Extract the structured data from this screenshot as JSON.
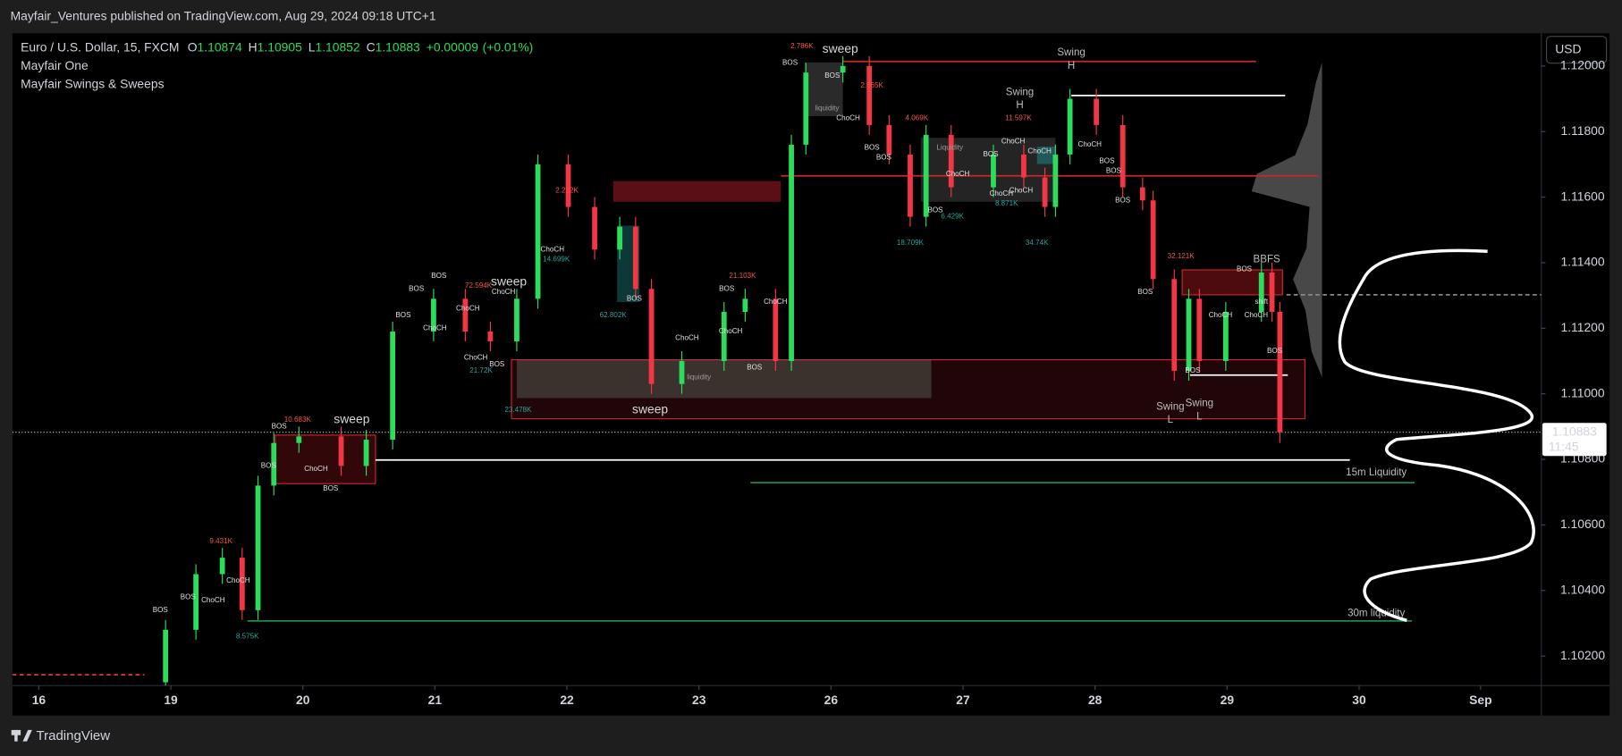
{
  "header": {
    "publisher": "Mayfair_Ventures published on TradingView.com, Aug 29, 2024 09:18 UTC+1",
    "brand": "TradingView"
  },
  "chart_data": {
    "type": "candlestick",
    "symbol": "Euro / U.S. Dollar, 15, FXCM",
    "ohlc_labels": [
      "O",
      "H",
      "L",
      "C"
    ],
    "ohlc_values": [
      1.10874,
      1.10905,
      1.10852,
      1.10883
    ],
    "change": {
      "value": 9e-05,
      "label": "+0.00009"
    },
    "change_percent": {
      "value": 0.01,
      "label": "(+0.01%)"
    },
    "indicators": [
      "Mayfair One",
      "Mayfair Swings & Sweeps"
    ],
    "currency": "USD",
    "last_price": 1.10883,
    "countdown": "11:45",
    "up_color": "#2ddc5a",
    "down_color": "#f23645",
    "x": [
      0.96,
      1.19,
      1.39,
      1.54,
      1.66,
      1.78,
      1.97,
      2.29,
      2.48,
      2.68,
      2.99,
      3.23,
      3.42,
      3.62,
      3.78,
      4.01,
      4.21,
      4.4,
      4.52,
      4.64,
      4.87,
      5.19,
      5.35,
      5.58,
      5.7,
      5.81,
      6.09,
      6.29,
      6.44,
      6.6,
      6.72,
      6.91,
      7.23,
      7.46,
      7.62,
      7.7,
      7.81,
      8.01,
      8.21,
      8.36,
      8.44,
      8.6,
      8.71,
      8.79,
      8.99,
      9.26,
      9.34,
      9.4
    ],
    "open": [
      1.1012,
      1.1028,
      1.1045,
      1.105,
      1.1034,
      1.1072,
      1.1085,
      1.1087,
      1.1078,
      1.1086,
      1.1119,
      1.1129,
      1.1119,
      1.1116,
      1.1129,
      1.117,
      1.1157,
      1.1144,
      1.1151,
      1.1132,
      1.1103,
      1.111,
      1.1125,
      1.1129,
      1.111,
      1.1176,
      1.1198,
      1.12,
      1.1182,
      1.1173,
      1.1154,
      1.1179,
      1.1163,
      1.1173,
      1.1166,
      1.1157,
      1.1173,
      1.119,
      1.1182,
      1.1163,
      1.1159,
      1.1135,
      1.1107,
      1.1129,
      1.111,
      1.1125,
      1.1137,
      1.1125
    ],
    "high": [
      1.1031,
      1.1048,
      1.1053,
      1.1053,
      1.1075,
      1.1088,
      1.109,
      1.109,
      1.1089,
      1.1122,
      1.1132,
      1.1132,
      1.1122,
      1.1132,
      1.1173,
      1.1173,
      1.116,
      1.1154,
      1.1154,
      1.1135,
      1.1113,
      1.1128,
      1.1132,
      1.1132,
      1.1179,
      1.1201,
      1.1203,
      1.1203,
      1.1185,
      1.1176,
      1.1182,
      1.1182,
      1.1176,
      1.1176,
      1.1169,
      1.1176,
      1.1193,
      1.1193,
      1.1185,
      1.1166,
      1.1162,
      1.1138,
      1.1132,
      1.1132,
      1.1128,
      1.114,
      1.114,
      1.1128
    ],
    "low": [
      1.1009,
      1.1025,
      1.1042,
      1.1031,
      1.1031,
      1.1069,
      1.1082,
      1.1075,
      1.1075,
      1.1083,
      1.1116,
      1.1116,
      1.1113,
      1.1113,
      1.1126,
      1.1154,
      1.1141,
      1.1141,
      1.1129,
      1.11,
      1.11,
      1.1107,
      1.1122,
      1.1107,
      1.1107,
      1.1173,
      1.1195,
      1.1179,
      1.117,
      1.1151,
      1.1151,
      1.116,
      1.116,
      1.1163,
      1.1154,
      1.1154,
      1.117,
      1.1179,
      1.116,
      1.1156,
      1.1132,
      1.1104,
      1.1104,
      1.1107,
      1.1107,
      1.1122,
      1.1122,
      1.1085
    ],
    "close": [
      1.1028,
      1.1045,
      1.105,
      1.1034,
      1.1072,
      1.1085,
      1.1087,
      1.1078,
      1.1086,
      1.1119,
      1.1129,
      1.1119,
      1.1116,
      1.1129,
      1.117,
      1.1157,
      1.1144,
      1.1151,
      1.1132,
      1.1103,
      1.111,
      1.1125,
      1.1129,
      1.111,
      1.1176,
      1.1198,
      1.12,
      1.1182,
      1.1173,
      1.1154,
      1.1179,
      1.1163,
      1.1173,
      1.1166,
      1.1157,
      1.1173,
      1.119,
      1.1182,
      1.1163,
      1.1159,
      1.1135,
      1.1107,
      1.1129,
      1.111,
      1.1125,
      1.1137,
      1.1125,
      1.10883
    ],
    "xlim": [
      -0.2,
      11.38
    ],
    "xticks": [
      {
        "value": 0,
        "label": "16"
      },
      {
        "value": 1,
        "label": "19"
      },
      {
        "value": 2,
        "label": "20"
      },
      {
        "value": 3,
        "label": "21"
      },
      {
        "value": 4,
        "label": "22"
      },
      {
        "value": 5,
        "label": "23"
      },
      {
        "value": 6,
        "label": "26"
      },
      {
        "value": 7,
        "label": "27"
      },
      {
        "value": 8,
        "label": "28"
      },
      {
        "value": 9,
        "label": "29"
      },
      {
        "value": 10,
        "label": "30"
      },
      {
        "value": 10.92,
        "label": "Sep"
      }
    ],
    "ylim": [
      1.1011,
      1.121
    ],
    "yticks": [
      {
        "value": 1.102,
        "label": "1.10200"
      },
      {
        "value": 1.104,
        "label": "1.10400"
      },
      {
        "value": 1.106,
        "label": "1.10600"
      },
      {
        "value": 1.108,
        "label": "1.10800"
      },
      {
        "value": 1.11,
        "label": "1.11000"
      },
      {
        "value": 1.112,
        "label": "1.11200"
      },
      {
        "value": 1.114,
        "label": "1.11400"
      },
      {
        "value": 1.116,
        "label": "1.11600"
      },
      {
        "value": 1.118,
        "label": "1.11800"
      },
      {
        "value": 1.12,
        "label": "1.12000"
      }
    ],
    "zones": [
      {
        "x0": 1.79,
        "x1": 2.55,
        "y0": 1.10874,
        "y1": 1.10726,
        "stroke": "#c62828",
        "fill": "rgba(140,20,30,0.35)"
      },
      {
        "x0": 4.35,
        "x1": 5.62,
        "y0": 1.11649,
        "y1": 1.11586,
        "stroke": "none",
        "fill": "rgba(120,20,30,0.75)"
      },
      {
        "x0": 8.66,
        "x1": 9.42,
        "y0": 1.11378,
        "y1": 1.11302,
        "stroke": "#c62828",
        "fill": "rgba(140,20,30,0.55)"
      },
      {
        "x0": 3.58,
        "x1": 9.59,
        "y0": 1.11104,
        "y1": 1.10924,
        "stroke": "#c62828",
        "fill": "rgba(110,20,30,0.3)"
      },
      {
        "x0": 3.62,
        "x1": 6.76,
        "y0": 1.11104,
        "y1": 1.10987,
        "stroke": "none",
        "fill": "rgba(120,150,130,0.3)"
      },
      {
        "x0": 5.8,
        "x1": 6.09,
        "y0": 1.12011,
        "y1": 1.11847,
        "stroke": "none",
        "fill": "rgba(120,120,120,0.35)"
      },
      {
        "x0": 6.68,
        "x1": 7.7,
        "y0": 1.11781,
        "y1": 1.11586,
        "stroke": "none",
        "fill": "rgba(120,120,120,0.3)"
      },
      {
        "x0": 4.38,
        "x1": 4.55,
        "y0": 1.11513,
        "y1": 1.1128,
        "stroke": "none",
        "fill": "rgba(30,140,140,0.4)"
      },
      {
        "x0": 7.56,
        "x1": 7.7,
        "y0": 1.11754,
        "y1": 1.11701,
        "stroke": "none",
        "fill": "rgba(30,140,140,0.5)"
      }
    ],
    "levels": [
      {
        "value": 1.10729,
        "x0": 5.39,
        "x1": 10.42,
        "color": "#1b8a4a",
        "style": "solid"
      },
      {
        "value": 1.10307,
        "x0": 1.58,
        "x1": 10.4,
        "color": "#1b8a4a",
        "style": "solid"
      },
      {
        "value": 1.10798,
        "x0": 2.55,
        "x1": 9.93,
        "color": "#ffffff",
        "style": "solid"
      },
      {
        "value": 1.1191,
        "x0": 7.82,
        "x1": 9.44,
        "color": "#ffffff",
        "style": "solid"
      },
      {
        "value": 1.11057,
        "x0": 8.72,
        "x1": 9.46,
        "color": "#ffffff",
        "style": "solid"
      },
      {
        "value": 1.12014,
        "x0": 6.09,
        "x1": 9.22,
        "color": "#c62828",
        "style": "solid"
      },
      {
        "value": 1.11665,
        "x0": 5.62,
        "x1": 9.69,
        "color": "#c62828",
        "style": "solid"
      },
      {
        "value": 1.11302,
        "x0": 9.45,
        "x1": 11.38,
        "color": "#888888",
        "style": "dashed"
      },
      {
        "value": 1.10143,
        "x0": -0.2,
        "x1": 0.8,
        "color": "#f23645",
        "style": "dashed"
      }
    ],
    "annotation_groups": [
      {
        "color": "#d8d8d8",
        "style": "large",
        "items": [
          {
            "text": "sweep",
            "x": 6.07,
            "y": 1.1205
          },
          {
            "text": "sweep",
            "x": 3.56,
            "y": 1.1134
          },
          {
            "text": "sweep",
            "x": 4.63,
            "y": 1.1095
          },
          {
            "text": "sweep",
            "x": 2.37,
            "y": 1.1092
          }
        ]
      },
      {
        "color": "#bdbdbd",
        "style": "medium",
        "items": [
          {
            "text": "Swing",
            "x": 7.82,
            "y": 1.1204
          },
          {
            "text": "H",
            "x": 7.82,
            "y": 1.12
          },
          {
            "text": "Swing",
            "x": 7.43,
            "y": 1.1192
          },
          {
            "text": "H",
            "x": 7.43,
            "y": 1.1188
          },
          {
            "text": "Swing",
            "x": 8.57,
            "y": 1.1096
          },
          {
            "text": "L",
            "x": 8.57,
            "y": 1.1092
          },
          {
            "text": "Swing",
            "x": 8.79,
            "y": 1.1097
          },
          {
            "text": "L",
            "x": 8.79,
            "y": 1.1093
          },
          {
            "text": "BBFS",
            "x": 9.3,
            "y": 1.1141
          },
          {
            "text": "15m Liquidity",
            "x": 10.13,
            "y": 1.1076
          },
          {
            "text": "30m liquidity",
            "x": 10.13,
            "y": 1.1033
          }
        ]
      },
      {
        "color": "#f2564d",
        "style": "small",
        "items": [
          {
            "text": "10.683K",
            "x": 1.96,
            "y": 1.1092
          },
          {
            "text": "9.431K",
            "x": 1.38,
            "y": 1.1055
          },
          {
            "text": "72.594K",
            "x": 3.33,
            "y": 1.1133
          },
          {
            "text": "2.232K",
            "x": 4.0,
            "y": 1.1162
          },
          {
            "text": "21.103K",
            "x": 5.33,
            "y": 1.1136
          },
          {
            "text": "2.786K",
            "x": 5.78,
            "y": 1.1206
          },
          {
            "text": "2.665K",
            "x": 6.31,
            "y": 1.1194
          },
          {
            "text": "4.069K",
            "x": 6.65,
            "y": 1.1184
          },
          {
            "text": "11.597K",
            "x": 7.42,
            "y": 1.1184
          },
          {
            "text": "32.121K",
            "x": 8.65,
            "y": 1.1142
          }
        ]
      },
      {
        "color": "#26a69a",
        "style": "small",
        "items": [
          {
            "text": "8.575K",
            "x": 1.58,
            "y": 1.1026
          },
          {
            "text": "21.72K",
            "x": 3.35,
            "y": 1.1107
          },
          {
            "text": "14.699K",
            "x": 3.92,
            "y": 1.1141
          },
          {
            "text": "62.802K",
            "x": 4.35,
            "y": 1.1124
          },
          {
            "text": "23.478K",
            "x": 3.63,
            "y": 1.1095
          },
          {
            "text": "18.709K",
            "x": 6.6,
            "y": 1.1146
          },
          {
            "text": "6.429K",
            "x": 6.92,
            "y": 1.1154
          },
          {
            "text": "8.871K",
            "x": 7.33,
            "y": 1.1158
          },
          {
            "text": "34.74K",
            "x": 7.56,
            "y": 1.1146
          }
        ]
      },
      {
        "color": "#e0e0e0",
        "style": "small",
        "items": [
          {
            "text": "BOS",
            "x": 1.82,
            "y": 1.109
          },
          {
            "text": "BOS",
            "x": 1.74,
            "y": 1.1078
          },
          {
            "text": "BOS",
            "x": 2.21,
            "y": 1.1071
          },
          {
            "text": "BOS",
            "x": 0.92,
            "y": 1.1034
          },
          {
            "text": "BOS",
            "x": 1.13,
            "y": 1.1038
          },
          {
            "text": "BOS",
            "x": 2.76,
            "y": 1.1124
          },
          {
            "text": "BOS",
            "x": 2.86,
            "y": 1.1132
          },
          {
            "text": "BOS",
            "x": 3.03,
            "y": 1.1136
          },
          {
            "text": "BOS",
            "x": 3.47,
            "y": 1.1109
          },
          {
            "text": "BOS",
            "x": 4.51,
            "y": 1.1129
          },
          {
            "text": "BOS",
            "x": 5.21,
            "y": 1.1132
          },
          {
            "text": "BOS",
            "x": 5.42,
            "y": 1.1108
          },
          {
            "text": "BOS",
            "x": 5.69,
            "y": 1.1201
          },
          {
            "text": "BOS",
            "x": 6.01,
            "y": 1.1197
          },
          {
            "text": "BOS",
            "x": 6.31,
            "y": 1.1175
          },
          {
            "text": "BOS",
            "x": 6.4,
            "y": 1.1172
          },
          {
            "text": "BOS",
            "x": 6.79,
            "y": 1.1156
          },
          {
            "text": "BOS",
            "x": 7.21,
            "y": 1.1173
          },
          {
            "text": "BOS",
            "x": 8.09,
            "y": 1.1171
          },
          {
            "text": "BOS",
            "x": 8.14,
            "y": 1.1168
          },
          {
            "text": "BOS",
            "x": 8.21,
            "y": 1.1159
          },
          {
            "text": "BOS",
            "x": 8.38,
            "y": 1.1131
          },
          {
            "text": "BOS",
            "x": 8.74,
            "y": 1.1107
          },
          {
            "text": "BOS",
            "x": 9.13,
            "y": 1.1138
          },
          {
            "text": "BOS",
            "x": 9.36,
            "y": 1.1113
          },
          {
            "text": "ChoCH",
            "x": 2.1,
            "y": 1.1077
          },
          {
            "text": "ChoCH",
            "x": 1.51,
            "y": 1.1043
          },
          {
            "text": "ChoCH",
            "x": 1.32,
            "y": 1.1037
          },
          {
            "text": "ChoCH",
            "x": 3.25,
            "y": 1.1126
          },
          {
            "text": "ChoCH",
            "x": 3.0,
            "y": 1.112
          },
          {
            "text": "ChoCH",
            "x": 3.31,
            "y": 1.1111
          },
          {
            "text": "ChoCH",
            "x": 3.52,
            "y": 1.1131
          },
          {
            "text": "ChoCH",
            "x": 3.89,
            "y": 1.1144
          },
          {
            "text": "ChoCH",
            "x": 4.91,
            "y": 1.1117
          },
          {
            "text": "ChoCH",
            "x": 5.58,
            "y": 1.1128
          },
          {
            "text": "ChoCH",
            "x": 5.24,
            "y": 1.1119
          },
          {
            "text": "ChoCH",
            "x": 6.13,
            "y": 1.1184
          },
          {
            "text": "ChoCH",
            "x": 6.96,
            "y": 1.1167
          },
          {
            "text": "ChoCH",
            "x": 7.29,
            "y": 1.1161
          },
          {
            "text": "ChoCH",
            "x": 7.38,
            "y": 1.1177
          },
          {
            "text": "ChoCH",
            "x": 7.58,
            "y": 1.1174
          },
          {
            "text": "ChoCH",
            "x": 7.96,
            "y": 1.1176
          },
          {
            "text": "ChoCH",
            "x": 8.95,
            "y": 1.1124
          },
          {
            "text": "ChoCH",
            "x": 9.22,
            "y": 1.1124
          },
          {
            "text": "ChoCH",
            "x": 7.44,
            "y": 1.1162
          },
          {
            "text": "shift",
            "x": 9.26,
            "y": 1.1128
          }
        ]
      },
      {
        "color": "#9e9e9e",
        "style": "small",
        "items": [
          {
            "text": "liquidity",
            "x": 5.97,
            "y": 1.1187
          },
          {
            "text": "Liquidity",
            "x": 6.9,
            "y": 1.1175
          },
          {
            "text": "liquidity",
            "x": 5.0,
            "y": 1.1105
          }
        ]
      }
    ]
  }
}
